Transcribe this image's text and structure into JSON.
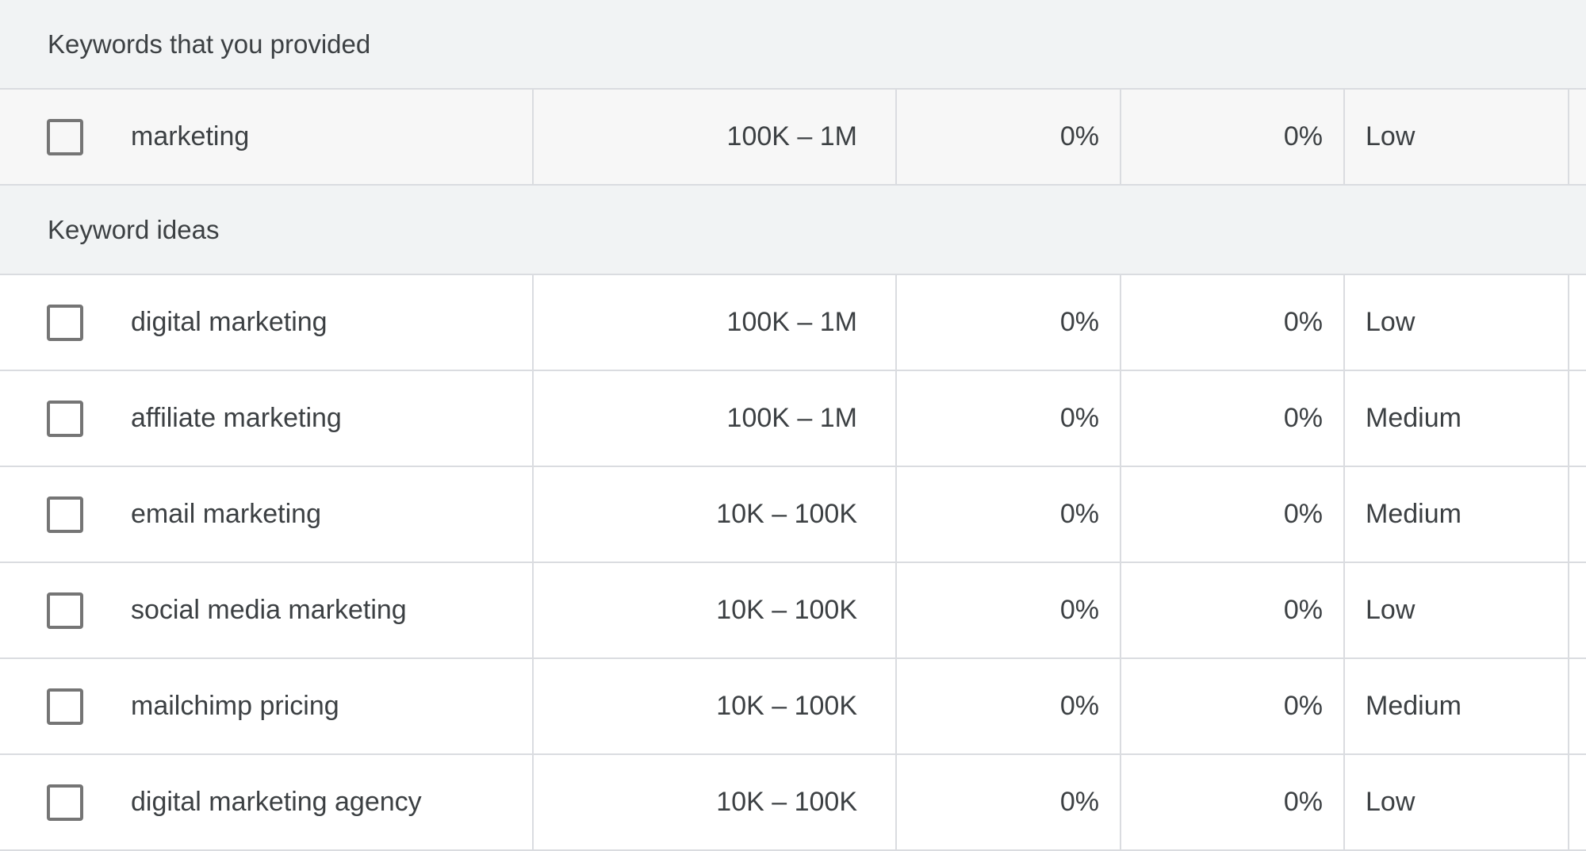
{
  "sections": [
    {
      "title": "Keywords that you provided",
      "rows": [
        {
          "keyword": "marketing",
          "searches": "100K – 1M",
          "change3m": "0%",
          "changeyoy": "0%",
          "competition": "Low"
        }
      ]
    },
    {
      "title": "Keyword ideas",
      "rows": [
        {
          "keyword": "digital marketing",
          "searches": "100K – 1M",
          "change3m": "0%",
          "changeyoy": "0%",
          "competition": "Low"
        },
        {
          "keyword": "affiliate marketing",
          "searches": "100K – 1M",
          "change3m": "0%",
          "changeyoy": "0%",
          "competition": "Medium"
        },
        {
          "keyword": "email marketing",
          "searches": "10K – 100K",
          "change3m": "0%",
          "changeyoy": "0%",
          "competition": "Medium"
        },
        {
          "keyword": "social media marketing",
          "searches": "10K – 100K",
          "change3m": "0%",
          "changeyoy": "0%",
          "competition": "Low"
        },
        {
          "keyword": "mailchimp pricing",
          "searches": "10K – 100K",
          "change3m": "0%",
          "changeyoy": "0%",
          "competition": "Medium"
        },
        {
          "keyword": "digital marketing agency",
          "searches": "10K – 100K",
          "change3m": "0%",
          "changeyoy": "0%",
          "competition": "Low"
        }
      ]
    }
  ]
}
